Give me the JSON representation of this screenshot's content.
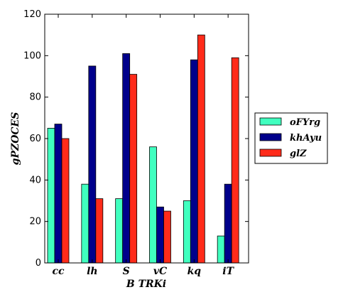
{
  "chart_data": {
    "type": "bar",
    "categories": [
      "cc",
      "lh",
      "S",
      "vC",
      "kq",
      "iT"
    ],
    "series": [
      {
        "name": "oFYrg",
        "color": "#40ffbf",
        "values": [
          65,
          38,
          31,
          56,
          30,
          13
        ]
      },
      {
        "name": "khAyu",
        "color": "#00008b",
        "values": [
          67,
          95,
          101,
          27,
          98,
          38
        ]
      },
      {
        "name": "glZ",
        "color": "#ff2b1a",
        "values": [
          60,
          31,
          91,
          25,
          110,
          99
        ]
      }
    ],
    "xlabel": "B TRKi",
    "ylabel": "gPZOCES",
    "ylim": [
      0,
      120
    ],
    "yticks": [
      0,
      20,
      40,
      60,
      80,
      100,
      120
    ],
    "grid": false,
    "legend_position": "right, outside plot"
  }
}
